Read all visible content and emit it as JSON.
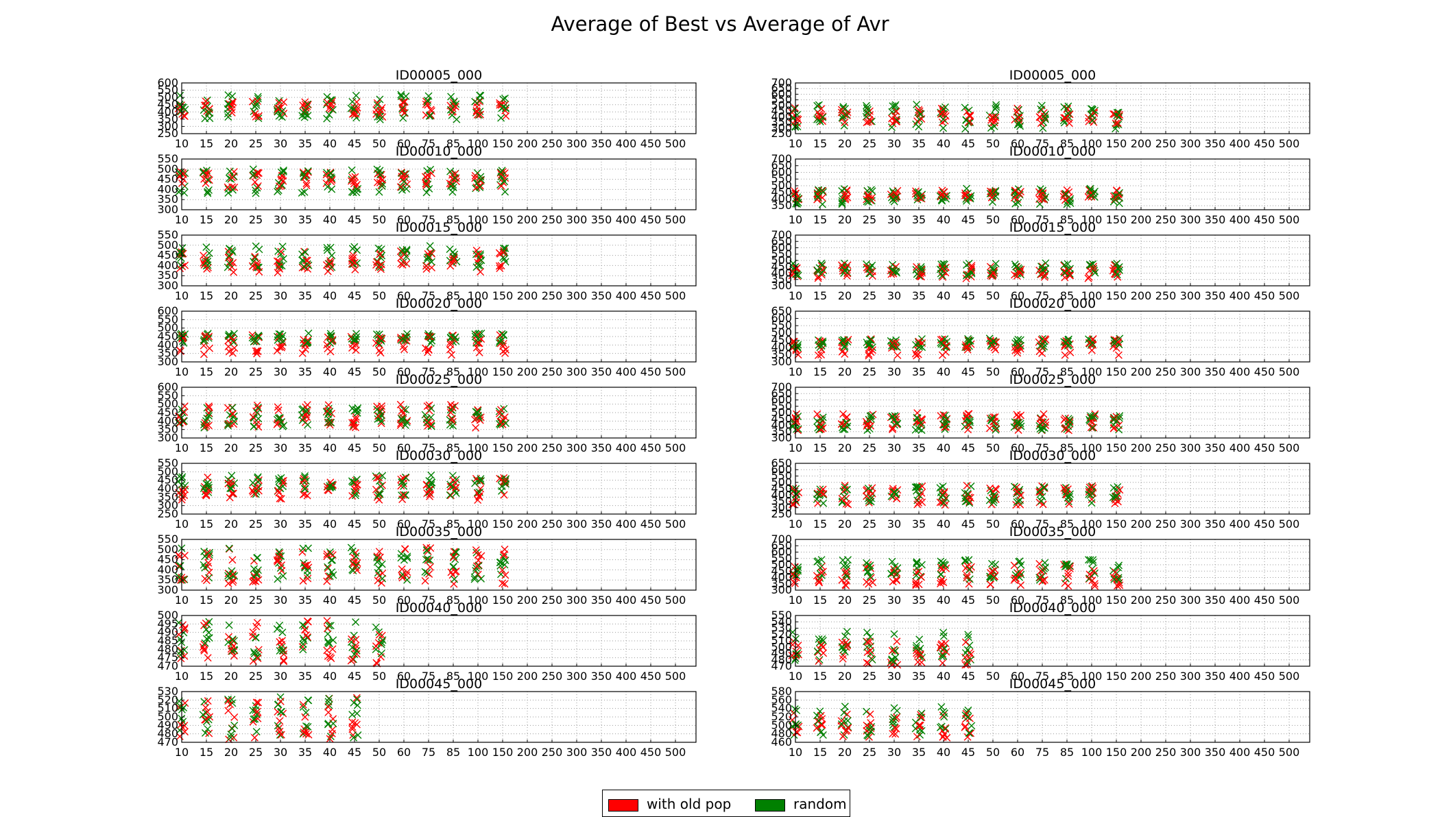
{
  "title": "Average of Best vs Average of Avr",
  "legend": [
    {
      "label": "with old pop",
      "color": "#ff0000"
    },
    {
      "label": "random",
      "color": "#008000"
    }
  ],
  "chart_data": {
    "type": "scatter",
    "marker": "x",
    "layout": "9 rows x 2 columns",
    "x_tick_labels": [
      "10",
      "15",
      "20",
      "25",
      "30",
      "35",
      "40",
      "45",
      "50",
      "60",
      "75",
      "85",
      "100",
      "150",
      "200",
      "250",
      "300",
      "350",
      "400",
      "450",
      "500"
    ],
    "series_colors": {
      "with old pop": "#ff0000",
      "random": "#008000"
    },
    "panels": [
      {
        "title": "ID00005_000",
        "y_ticks": [
          250,
          300,
          350,
          400,
          450,
          500,
          550,
          600
        ],
        "ylim": [
          250,
          600
        ],
        "points": 14,
        "red_center": 420,
        "red_spread": 55,
        "green_center": 430,
        "green_spread": 90
      },
      {
        "title": "ID00005_000",
        "y_ticks": [
          250,
          300,
          350,
          400,
          450,
          500,
          550,
          600,
          650,
          700
        ],
        "ylim": [
          250,
          700
        ],
        "points": 14,
        "red_center": 410,
        "red_spread": 70,
        "green_center": 400,
        "green_spread": 110
      },
      {
        "title": "ID00010_000",
        "y_ticks": [
          300,
          350,
          400,
          450,
          500,
          550
        ],
        "ylim": [
          300,
          550
        ],
        "points": 14,
        "red_center": 450,
        "red_spread": 40,
        "green_center": 440,
        "green_spread": 60
      },
      {
        "title": "ID00010_000",
        "y_ticks": [
          350,
          400,
          450,
          500,
          550,
          600,
          650,
          700
        ],
        "ylim": [
          320,
          700
        ],
        "points": 14,
        "red_center": 430,
        "red_spread": 40,
        "green_center": 420,
        "green_spread": 60
      },
      {
        "title": "ID00015_000",
        "y_ticks": [
          300,
          350,
          400,
          450,
          500,
          550
        ],
        "ylim": [
          300,
          550
        ],
        "points": 14,
        "red_center": 420,
        "red_spread": 55,
        "green_center": 445,
        "green_spread": 55
      },
      {
        "title": "ID00015_000",
        "y_ticks": [
          300,
          350,
          400,
          450,
          500,
          550,
          600,
          650,
          700
        ],
        "ylim": [
          300,
          700
        ],
        "points": 14,
        "red_center": 410,
        "red_spread": 55,
        "green_center": 430,
        "green_spread": 50
      },
      {
        "title": "ID00020_000",
        "y_ticks": [
          300,
          350,
          400,
          450,
          500,
          550,
          600
        ],
        "ylim": [
          300,
          600
        ],
        "points": 14,
        "red_center": 400,
        "red_spread": 60,
        "green_center": 440,
        "green_spread": 30
      },
      {
        "title": "ID00020_000",
        "y_ticks": [
          300,
          350,
          400,
          450,
          500,
          550,
          600,
          650
        ],
        "ylim": [
          300,
          650
        ],
        "points": 14,
        "red_center": 400,
        "red_spread": 60,
        "green_center": 430,
        "green_spread": 35
      },
      {
        "title": "ID00025_000",
        "y_ticks": [
          300,
          350,
          400,
          450,
          500,
          550,
          600
        ],
        "ylim": [
          300,
          600
        ],
        "points": 14,
        "red_center": 430,
        "red_spread": 70,
        "green_center": 420,
        "green_spread": 60
      },
      {
        "title": "ID00025_000",
        "y_ticks": [
          300,
          350,
          400,
          450,
          500,
          550,
          600,
          650,
          700
        ],
        "ylim": [
          300,
          700
        ],
        "points": 14,
        "red_center": 430,
        "red_spread": 70,
        "green_center": 420,
        "green_spread": 60
      },
      {
        "title": "ID00030_000",
        "y_ticks": [
          250,
          300,
          350,
          400,
          450,
          500,
          550
        ],
        "ylim": [
          250,
          550
        ],
        "points": 14,
        "red_center": 400,
        "red_spread": 70,
        "green_center": 420,
        "green_spread": 60
      },
      {
        "title": "ID00030_000",
        "y_ticks": [
          250,
          300,
          350,
          400,
          450,
          500,
          550,
          600,
          650
        ],
        "ylim": [
          250,
          650
        ],
        "points": 14,
        "red_center": 400,
        "red_spread": 80,
        "green_center": 400,
        "green_spread": 70
      },
      {
        "title": "ID00035_000",
        "y_ticks": [
          300,
          350,
          400,
          450,
          500,
          550
        ],
        "ylim": [
          300,
          550
        ],
        "points": 14,
        "red_center": 420,
        "red_spread": 90,
        "green_center": 430,
        "green_spread": 80
      },
      {
        "title": "ID00035_000",
        "y_ticks": [
          300,
          350,
          400,
          450,
          500,
          550,
          600,
          650,
          700
        ],
        "ylim": [
          300,
          700
        ],
        "points": 14,
        "red_center": 420,
        "red_spread": 90,
        "green_center": 460,
        "green_spread": 80
      },
      {
        "title": "ID00040_000",
        "y_ticks": [
          470,
          475,
          480,
          485,
          490,
          495,
          500
        ],
        "ylim": [
          470,
          500
        ],
        "points": 9,
        "red_center": 484,
        "red_spread": 13,
        "green_center": 485,
        "green_spread": 12
      },
      {
        "title": "ID00040_000",
        "y_ticks": [
          470,
          480,
          490,
          500,
          510,
          520,
          530,
          540,
          550
        ],
        "ylim": [
          470,
          550
        ],
        "points": 8,
        "red_center": 490,
        "red_spread": 20,
        "green_center": 500,
        "green_spread": 25
      },
      {
        "title": "ID00045_000",
        "y_ticks": [
          470,
          480,
          490,
          500,
          510,
          520,
          530
        ],
        "ylim": [
          470,
          530
        ],
        "points": 8,
        "red_center": 498,
        "red_spread": 25,
        "green_center": 500,
        "green_spread": 25
      },
      {
        "title": "ID00045_000",
        "y_ticks": [
          460,
          480,
          500,
          520,
          540,
          560,
          580
        ],
        "ylim": [
          460,
          580
        ],
        "points": 8,
        "red_center": 500,
        "red_spread": 30,
        "green_center": 510,
        "green_spread": 35
      }
    ]
  }
}
